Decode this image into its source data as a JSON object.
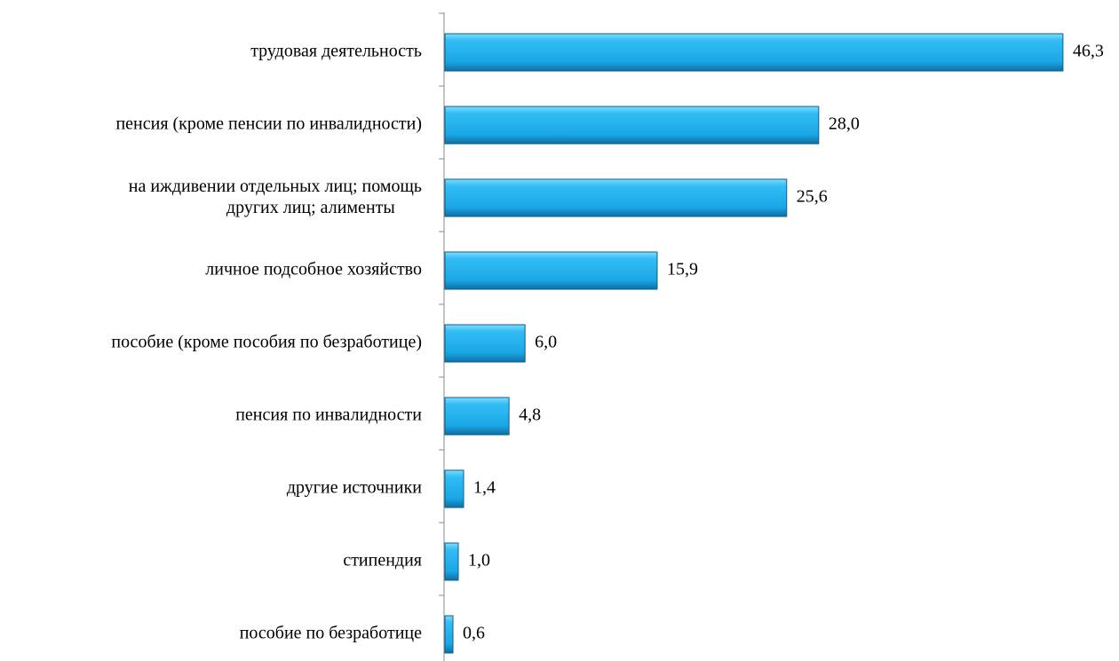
{
  "chart_data": {
    "type": "barh",
    "categories": [
      "трудовая деятельность",
      "пенсия (кроме пенсии по инвалидности)",
      "на иждивении отдельных лиц; помощь\nдругих лиц; алименты",
      "личное подсобное хозяйство",
      "пособие (кроме пособия по безработице)",
      "пенсия по инвалидности",
      "другие источники",
      "стипендия",
      "пособие по безработице"
    ],
    "values": [
      46.3,
      28.0,
      25.6,
      15.9,
      6.0,
      4.8,
      1.4,
      1.0,
      0.6
    ],
    "value_labels": [
      "46,3",
      "28,0",
      "25,6",
      "15,9",
      "6,0",
      "4,8",
      "1,4",
      "1,0",
      "0,6"
    ],
    "color": "#1aa7e6"
  }
}
